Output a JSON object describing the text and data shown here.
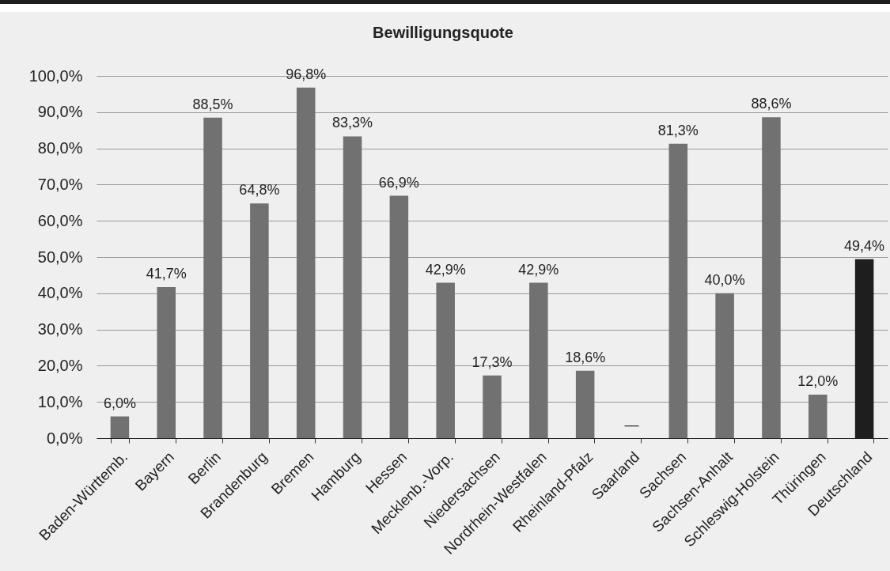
{
  "chart_data": {
    "type": "bar",
    "title": "Bewilligungsquote",
    "categories": [
      "Baden-Württemb.",
      "Bayern",
      "Berlin",
      "Brandenburg",
      "Bremen",
      "Hamburg",
      "Hessen",
      "Mecklenb.-Vorp.",
      "Niedersachsen",
      "Nordrhein-Westfalen",
      "Rheinland-Pfalz",
      "Saarland",
      "Sachsen",
      "Sachsen-Anhalt",
      "Schleswig-Holstein",
      "Thüringen",
      "Deutschland"
    ],
    "values": [
      6.0,
      41.7,
      88.5,
      64.8,
      96.8,
      83.3,
      66.9,
      42.9,
      17.3,
      42.9,
      18.6,
      null,
      81.3,
      40.0,
      88.6,
      12.0,
      49.4
    ],
    "value_labels": [
      "6,0%",
      "41,7%",
      "88,5%",
      "64,8%",
      "96,8%",
      "83,3%",
      "66,9%",
      "42,9%",
      "17,3%",
      "42,9%",
      "18,6%",
      "—",
      "81,3%",
      "40,0%",
      "88,6%",
      "12,0%",
      "49,4%"
    ],
    "colors": [
      "#717171",
      "#717171",
      "#717171",
      "#717171",
      "#717171",
      "#717171",
      "#717171",
      "#717171",
      "#717171",
      "#717171",
      "#717171",
      "#717171",
      "#717171",
      "#717171",
      "#717171",
      "#717171",
      "#1e1e1e"
    ],
    "ylim": [
      0,
      100
    ],
    "yticks": [
      {
        "value": 0,
        "label": "0,0%"
      },
      {
        "value": 10,
        "label": "10,0%"
      },
      {
        "value": 20,
        "label": "20,0%"
      },
      {
        "value": 30,
        "label": "30,0%"
      },
      {
        "value": 40,
        "label": "40,0%"
      },
      {
        "value": 50,
        "label": "50,0%"
      },
      {
        "value": 60,
        "label": "60,0%"
      },
      {
        "value": 70,
        "label": "70,0%"
      },
      {
        "value": 80,
        "label": "80,0%"
      },
      {
        "value": 90,
        "label": "90,0%"
      },
      {
        "value": 100,
        "label": "100,0%"
      }
    ],
    "grid": "y"
  }
}
